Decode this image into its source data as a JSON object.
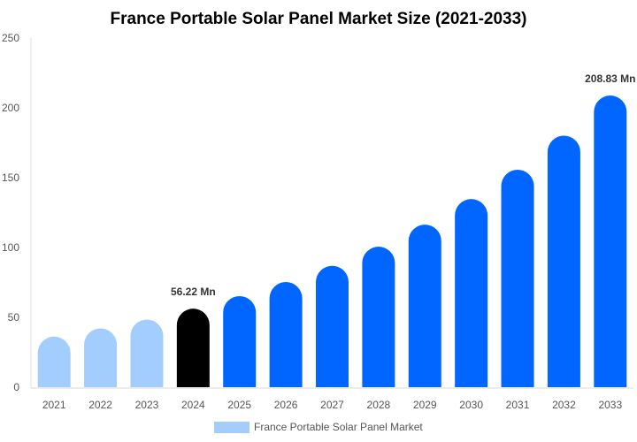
{
  "chart_data": {
    "type": "bar",
    "title": "France Portable Solar Panel Market Size (2021-2033)",
    "xlabel": "",
    "ylabel": "",
    "ylim": [
      0,
      250
    ],
    "yticks": [
      0,
      50,
      100,
      150,
      200,
      250
    ],
    "grid": false,
    "categories": [
      "2021",
      "2022",
      "2023",
      "2024",
      "2025",
      "2026",
      "2027",
      "2028",
      "2029",
      "2030",
      "2031",
      "2032",
      "2033"
    ],
    "series": [
      {
        "name": "France Portable Solar Panel Market",
        "values": [
          36.2,
          42.1,
          48.4,
          56.22,
          65.2,
          75.3,
          86.9,
          100.6,
          116.4,
          134.7,
          155.7,
          180.1,
          208.83
        ]
      }
    ],
    "bar_colors": [
      "#a3cdfd",
      "#a3cdfd",
      "#a3cdfd",
      "#000000",
      "#0066ff",
      "#0066ff",
      "#0066ff",
      "#0066ff",
      "#0066ff",
      "#0066ff",
      "#0066ff",
      "#0066ff",
      "#0066ff"
    ],
    "annotations": [
      {
        "category": "2024",
        "text": "56.22 Mn"
      },
      {
        "category": "2033",
        "text": "208.83 Mn"
      }
    ],
    "legend": {
      "placement": "bottom",
      "label": "France Portable Solar Panel Market",
      "color": "#a3cdfd"
    }
  }
}
